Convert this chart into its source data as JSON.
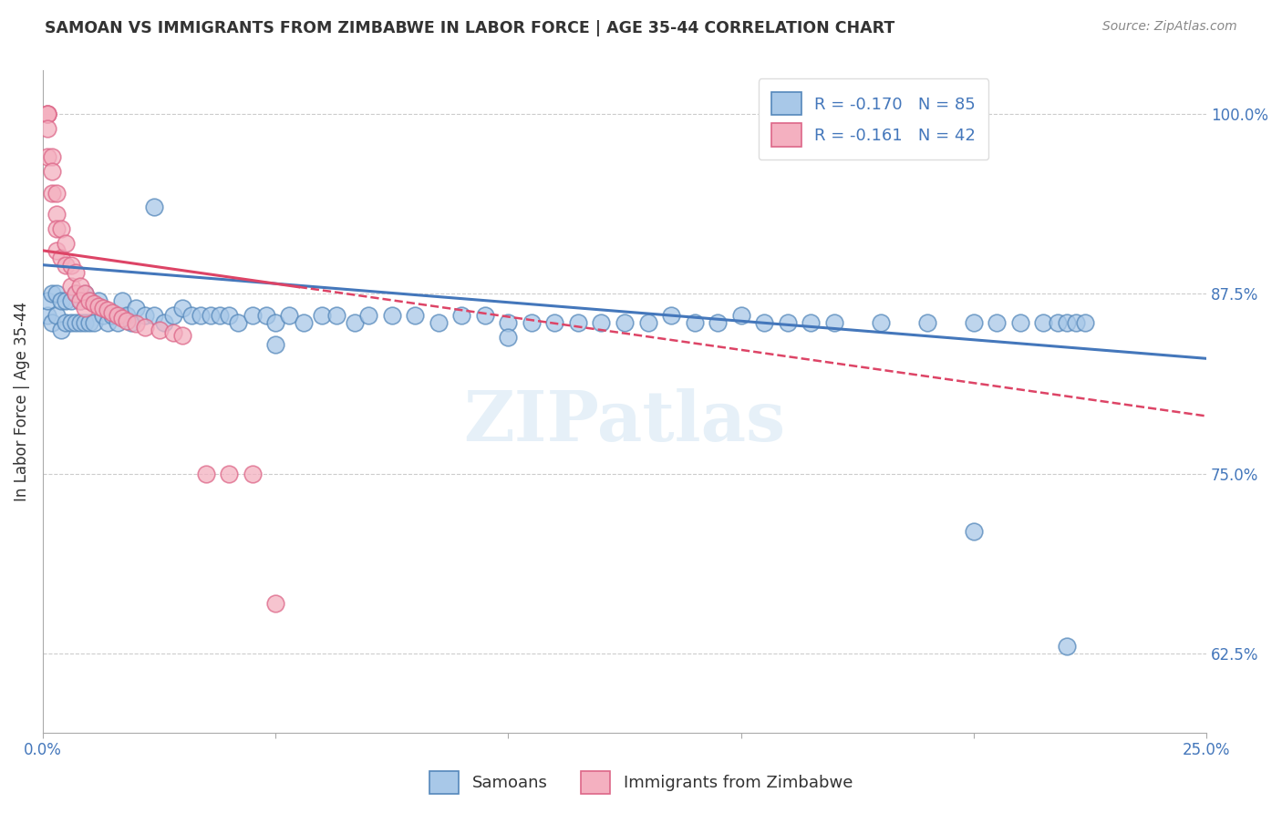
{
  "title": "SAMOAN VS IMMIGRANTS FROM ZIMBABWE IN LABOR FORCE | AGE 35-44 CORRELATION CHART",
  "source": "Source: ZipAtlas.com",
  "ylabel": "In Labor Force | Age 35-44",
  "xlim": [
    0.0,
    0.25
  ],
  "ylim": [
    0.57,
    1.03
  ],
  "xticks": [
    0.0,
    0.05,
    0.1,
    0.15,
    0.2,
    0.25
  ],
  "xticklabels": [
    "0.0%",
    "",
    "",
    "",
    "",
    "25.0%"
  ],
  "yticks_right": [
    0.625,
    0.75,
    0.875,
    1.0
  ],
  "ytick_labels_right": [
    "62.5%",
    "75.0%",
    "87.5%",
    "100.0%"
  ],
  "blue_R": -0.17,
  "blue_N": 85,
  "pink_R": -0.161,
  "pink_N": 42,
  "blue_color": "#a8c8e8",
  "pink_color": "#f4b0c0",
  "blue_edge_color": "#5588bb",
  "pink_edge_color": "#dd6688",
  "blue_line_color": "#4477bb",
  "pink_line_color": "#dd4466",
  "watermark": "ZIPatlas",
  "legend_blue_label": "Samoans",
  "legend_pink_label": "Immigrants from Zimbabwe",
  "blue_scatter_x": [
    0.001,
    0.001,
    0.002,
    0.002,
    0.003,
    0.003,
    0.004,
    0.004,
    0.005,
    0.005,
    0.006,
    0.006,
    0.007,
    0.007,
    0.008,
    0.008,
    0.009,
    0.009,
    0.01,
    0.01,
    0.011,
    0.012,
    0.013,
    0.014,
    0.015,
    0.016,
    0.017,
    0.018,
    0.019,
    0.02,
    0.022,
    0.024,
    0.026,
    0.028,
    0.03,
    0.032,
    0.034,
    0.036,
    0.038,
    0.04,
    0.042,
    0.045,
    0.048,
    0.05,
    0.053,
    0.056,
    0.06,
    0.063,
    0.067,
    0.07,
    0.075,
    0.08,
    0.085,
    0.09,
    0.095,
    0.1,
    0.105,
    0.11,
    0.115,
    0.12,
    0.125,
    0.13,
    0.135,
    0.14,
    0.145,
    0.15,
    0.155,
    0.16,
    0.165,
    0.17,
    0.18,
    0.19,
    0.2,
    0.205,
    0.21,
    0.215,
    0.218,
    0.22,
    0.222,
    0.224,
    0.024,
    0.05,
    0.1,
    0.2,
    0.22
  ],
  "blue_scatter_y": [
    0.86,
    0.87,
    0.855,
    0.875,
    0.86,
    0.875,
    0.85,
    0.87,
    0.855,
    0.87,
    0.855,
    0.87,
    0.855,
    0.875,
    0.855,
    0.87,
    0.855,
    0.875,
    0.855,
    0.87,
    0.855,
    0.87,
    0.86,
    0.855,
    0.86,
    0.855,
    0.87,
    0.86,
    0.855,
    0.865,
    0.86,
    0.86,
    0.855,
    0.86,
    0.865,
    0.86,
    0.86,
    0.86,
    0.86,
    0.86,
    0.855,
    0.86,
    0.86,
    0.855,
    0.86,
    0.855,
    0.86,
    0.86,
    0.855,
    0.86,
    0.86,
    0.86,
    0.855,
    0.86,
    0.86,
    0.855,
    0.855,
    0.855,
    0.855,
    0.855,
    0.855,
    0.855,
    0.86,
    0.855,
    0.855,
    0.86,
    0.855,
    0.855,
    0.855,
    0.855,
    0.855,
    0.855,
    0.855,
    0.855,
    0.855,
    0.855,
    0.855,
    0.855,
    0.855,
    0.855,
    0.935,
    0.84,
    0.845,
    0.71,
    0.63
  ],
  "pink_scatter_x": [
    0.001,
    0.001,
    0.001,
    0.001,
    0.001,
    0.002,
    0.002,
    0.002,
    0.003,
    0.003,
    0.003,
    0.003,
    0.004,
    0.004,
    0.005,
    0.005,
    0.006,
    0.006,
    0.007,
    0.007,
    0.008,
    0.008,
    0.009,
    0.009,
    0.01,
    0.011,
    0.012,
    0.013,
    0.014,
    0.015,
    0.016,
    0.017,
    0.018,
    0.02,
    0.022,
    0.025,
    0.028,
    0.03,
    0.035,
    0.04,
    0.045,
    0.05
  ],
  "pink_scatter_y": [
    1.0,
    1.0,
    1.0,
    0.99,
    0.97,
    0.97,
    0.96,
    0.945,
    0.945,
    0.93,
    0.92,
    0.905,
    0.92,
    0.9,
    0.91,
    0.895,
    0.895,
    0.88,
    0.89,
    0.875,
    0.88,
    0.87,
    0.875,
    0.865,
    0.87,
    0.868,
    0.866,
    0.865,
    0.864,
    0.862,
    0.86,
    0.858,
    0.856,
    0.854,
    0.852,
    0.85,
    0.848,
    0.846,
    0.75,
    0.75,
    0.75,
    0.66
  ]
}
